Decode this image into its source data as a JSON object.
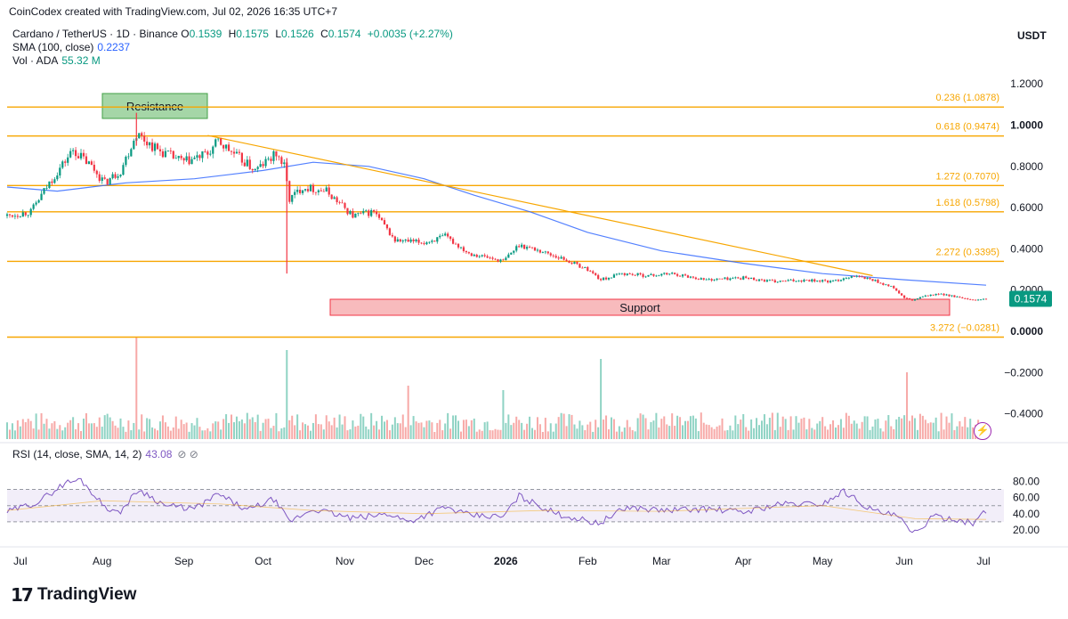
{
  "header": {
    "credit": "CoinCodex created with TradingView.com, Jul 02, 2026 16:35 UTC+7"
  },
  "legend": {
    "symbol": "Cardano / TetherUS · 1D · Binance",
    "ohlc": [
      {
        "k": "O",
        "v": "0.1539"
      },
      {
        "k": "H",
        "v": "0.1575"
      },
      {
        "k": "L",
        "v": "0.1526"
      },
      {
        "k": "C",
        "v": "0.1574"
      }
    ],
    "change": "+0.0035 (+2.27%)",
    "sma_label": "SMA (100, close)",
    "sma_value": "0.2237",
    "vol_label": "Vol · ADA",
    "vol_value": "55.32 M"
  },
  "currency": "USDT",
  "footer": {
    "logo_icon": "17",
    "logo_text": "TradingView"
  },
  "rsi_legend": {
    "label": "RSI (14, close, SMA, 14, 2)",
    "value": "43.08",
    "eye_icons": "⊘  ⊘"
  },
  "colors": {
    "up": "#089981",
    "down": "#f23645",
    "fib": "#f7a600",
    "sma": "#2962ff",
    "rsi": "#7e57c2",
    "resistance_fill": "#a5d6a7",
    "support_fill": "#f8bbbd"
  },
  "chart_data": [
    {
      "type": "line",
      "name": "price",
      "title": "Cardano / TetherUS · 1D · Binance",
      "y_axis_ticks": [
        "1.2000",
        "1.0000",
        "0.8000",
        "0.6000",
        "0.4000",
        "0.2000",
        "0.0000",
        "−0.2000",
        "−0.4000"
      ],
      "x_axis_ticks": [
        "Jul",
        "Aug",
        "Sep",
        "Oct",
        "Nov",
        "Dec",
        "2026",
        "Feb",
        "Mar",
        "Apr",
        "May",
        "Jun",
        "Jul"
      ],
      "ylim": [
        -0.5,
        1.28
      ],
      "x_range": [
        "2025-06-26",
        "2026-07-02"
      ],
      "price_label": "0.1574",
      "close_path": [
        {
          "x": "2025-06-26",
          "y": 0.56
        },
        {
          "x": "2025-07-05",
          "y": 0.58
        },
        {
          "x": "2025-07-12",
          "y": 0.72
        },
        {
          "x": "2025-07-21",
          "y": 0.88
        },
        {
          "x": "2025-07-28",
          "y": 0.8
        },
        {
          "x": "2025-08-02",
          "y": 0.72
        },
        {
          "x": "2025-08-08",
          "y": 0.78
        },
        {
          "x": "2025-08-14",
          "y": 0.96
        },
        {
          "x": "2025-08-22",
          "y": 0.88
        },
        {
          "x": "2025-09-01",
          "y": 0.82
        },
        {
          "x": "2025-09-10",
          "y": 0.86
        },
        {
          "x": "2025-09-14",
          "y": 0.92
        },
        {
          "x": "2025-09-22",
          "y": 0.84
        },
        {
          "x": "2025-09-28",
          "y": 0.78
        },
        {
          "x": "2025-10-06",
          "y": 0.86
        },
        {
          "x": "2025-10-09",
          "y": 0.8
        },
        {
          "x": "2025-10-11",
          "y": 0.64
        },
        {
          "x": "2025-10-16",
          "y": 0.7
        },
        {
          "x": "2025-10-25",
          "y": 0.68
        },
        {
          "x": "2025-11-04",
          "y": 0.56
        },
        {
          "x": "2025-11-12",
          "y": 0.58
        },
        {
          "x": "2025-11-20",
          "y": 0.44
        },
        {
          "x": "2025-12-01",
          "y": 0.43
        },
        {
          "x": "2025-12-09",
          "y": 0.46
        },
        {
          "x": "2025-12-18",
          "y": 0.38
        },
        {
          "x": "2025-12-31",
          "y": 0.34
        },
        {
          "x": "2026-01-06",
          "y": 0.42
        },
        {
          "x": "2026-01-14",
          "y": 0.39
        },
        {
          "x": "2026-01-23",
          "y": 0.35
        },
        {
          "x": "2026-02-01",
          "y": 0.3
        },
        {
          "x": "2026-02-06",
          "y": 0.25
        },
        {
          "x": "2026-02-14",
          "y": 0.28
        },
        {
          "x": "2026-02-24",
          "y": 0.27
        },
        {
          "x": "2026-03-05",
          "y": 0.28
        },
        {
          "x": "2026-03-18",
          "y": 0.25
        },
        {
          "x": "2026-04-01",
          "y": 0.26
        },
        {
          "x": "2026-04-13",
          "y": 0.24
        },
        {
          "x": "2026-04-25",
          "y": 0.25
        },
        {
          "x": "2026-05-05",
          "y": 0.24
        },
        {
          "x": "2026-05-12",
          "y": 0.27
        },
        {
          "x": "2026-05-20",
          "y": 0.25
        },
        {
          "x": "2026-05-28",
          "y": 0.21
        },
        {
          "x": "2026-06-01",
          "y": 0.16
        },
        {
          "x": "2026-06-04",
          "y": 0.15
        },
        {
          "x": "2026-06-10",
          "y": 0.175
        },
        {
          "x": "2026-06-16",
          "y": 0.18
        },
        {
          "x": "2026-06-21",
          "y": 0.165
        },
        {
          "x": "2026-06-26",
          "y": 0.15
        },
        {
          "x": "2026-07-02",
          "y": 0.1574
        }
      ],
      "wicks": [
        {
          "x": "2025-08-14",
          "low": 0.9,
          "high": 1.06
        },
        {
          "x": "2025-10-10",
          "low": 0.28,
          "high": 0.84
        }
      ],
      "sma_path": [
        {
          "x": "2025-06-26",
          "y": 0.7
        },
        {
          "x": "2025-07-15",
          "y": 0.68
        },
        {
          "x": "2025-08-10",
          "y": 0.72
        },
        {
          "x": "2025-09-05",
          "y": 0.74
        },
        {
          "x": "2025-10-01",
          "y": 0.78
        },
        {
          "x": "2025-10-20",
          "y": 0.82
        },
        {
          "x": "2025-11-10",
          "y": 0.8
        },
        {
          "x": "2025-12-01",
          "y": 0.74
        },
        {
          "x": "2025-12-20",
          "y": 0.66
        },
        {
          "x": "2026-01-10",
          "y": 0.58
        },
        {
          "x": "2026-02-01",
          "y": 0.48
        },
        {
          "x": "2026-03-01",
          "y": 0.39
        },
        {
          "x": "2026-04-01",
          "y": 0.33
        },
        {
          "x": "2026-05-01",
          "y": 0.28
        },
        {
          "x": "2026-06-01",
          "y": 0.25
        },
        {
          "x": "2026-07-02",
          "y": 0.2237
        }
      ],
      "trendline": [
        {
          "x": "2025-09-10",
          "y": 0.95
        },
        {
          "x": "2026-05-20",
          "y": 0.27
        }
      ],
      "fib_levels": [
        {
          "label": "0.236 (1.0878)",
          "value": 1.0878
        },
        {
          "label": "0.618 (0.9474)",
          "value": 0.9474
        },
        {
          "label": "1.272 (0.7070)",
          "value": 0.707
        },
        {
          "label": "1.618 (0.5798)",
          "value": 0.5798
        },
        {
          "label": "2.272 (0.3395)",
          "value": 0.3395
        },
        {
          "label": "3.272 (−0.0281)",
          "value": -0.0281
        }
      ],
      "zones": [
        {
          "label": "Resistance",
          "x0": "2025-07-30",
          "x1": "2025-08-30",
          "y0": 1.01,
          "y1": 1.13
        },
        {
          "label": "Support",
          "x0": "2025-10-22",
          "x1": "2026-06-22",
          "y0": 0.07,
          "y1": 0.15
        }
      ],
      "volume_note": "Vol · ADA 55.32 M"
    },
    {
      "type": "line",
      "name": "rsi",
      "title": "RSI (14, close, SMA, 14, 2)",
      "y_axis_ticks": [
        "80.00",
        "60.00",
        "40.00",
        "20.00"
      ],
      "ylim": [
        10,
        86
      ],
      "band": [
        30,
        70
      ],
      "midline": 50,
      "current": 43.08,
      "rsi_path": [
        {
          "x": "2025-06-26",
          "y": 42
        },
        {
          "x": "2025-07-08",
          "y": 55
        },
        {
          "x": "2025-07-18",
          "y": 78
        },
        {
          "x": "2025-07-24",
          "y": 82
        },
        {
          "x": "2025-08-01",
          "y": 52
        },
        {
          "x": "2025-08-07",
          "y": 40
        },
        {
          "x": "2025-08-15",
          "y": 70
        },
        {
          "x": "2025-08-25",
          "y": 50
        },
        {
          "x": "2025-09-05",
          "y": 46
        },
        {
          "x": "2025-09-14",
          "y": 64
        },
        {
          "x": "2025-09-25",
          "y": 44
        },
        {
          "x": "2025-10-05",
          "y": 58
        },
        {
          "x": "2025-10-11",
          "y": 30
        },
        {
          "x": "2025-10-20",
          "y": 46
        },
        {
          "x": "2025-11-04",
          "y": 34
        },
        {
          "x": "2025-11-18",
          "y": 40
        },
        {
          "x": "2025-11-25",
          "y": 30
        },
        {
          "x": "2025-12-09",
          "y": 48
        },
        {
          "x": "2025-12-18",
          "y": 38
        },
        {
          "x": "2025-12-31",
          "y": 36
        },
        {
          "x": "2026-01-06",
          "y": 62
        },
        {
          "x": "2026-01-20",
          "y": 40
        },
        {
          "x": "2026-02-05",
          "y": 28
        },
        {
          "x": "2026-02-16",
          "y": 48
        },
        {
          "x": "2026-03-02",
          "y": 44
        },
        {
          "x": "2026-03-18",
          "y": 46
        },
        {
          "x": "2026-04-01",
          "y": 42
        },
        {
          "x": "2026-04-15",
          "y": 52
        },
        {
          "x": "2026-05-01",
          "y": 52
        },
        {
          "x": "2026-05-09",
          "y": 68
        },
        {
          "x": "2026-05-20",
          "y": 44
        },
        {
          "x": "2026-05-30",
          "y": 36
        },
        {
          "x": "2026-06-04",
          "y": 14
        },
        {
          "x": "2026-06-12",
          "y": 36
        },
        {
          "x": "2026-06-20",
          "y": 34
        },
        {
          "x": "2026-06-27",
          "y": 28
        },
        {
          "x": "2026-07-02",
          "y": 43.08
        }
      ],
      "rsi_ma_path": [
        {
          "x": "2025-06-26",
          "y": 44
        },
        {
          "x": "2025-08-01",
          "y": 56
        },
        {
          "x": "2025-09-15",
          "y": 52
        },
        {
          "x": "2025-10-20",
          "y": 44
        },
        {
          "x": "2025-12-01",
          "y": 40
        },
        {
          "x": "2026-01-15",
          "y": 44
        },
        {
          "x": "2026-03-01",
          "y": 43
        },
        {
          "x": "2026-05-01",
          "y": 50
        },
        {
          "x": "2026-06-05",
          "y": 34
        },
        {
          "x": "2026-07-02",
          "y": 33
        }
      ]
    }
  ]
}
